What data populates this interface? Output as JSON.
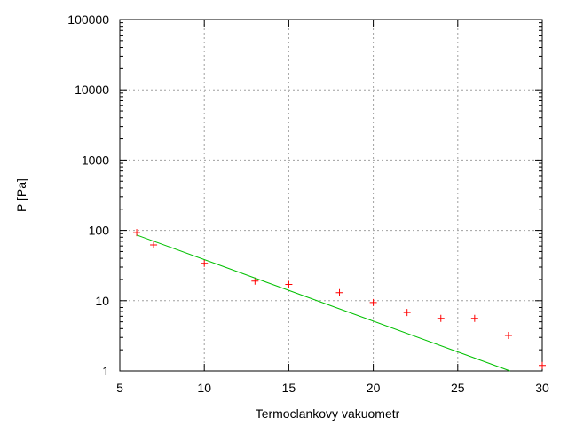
{
  "chart_data": {
    "type": "scatter",
    "title": "",
    "xlabel": "Termoclankovy vakuometr",
    "ylabel": "P [Pa]",
    "xlim": [
      5,
      30
    ],
    "ylim": [
      1,
      100000
    ],
    "yscale": "log",
    "grid": true,
    "x_ticks": [
      5,
      10,
      15,
      20,
      25,
      30
    ],
    "x_tick_labels": [
      "5",
      "10",
      "15",
      "20",
      "25",
      "30"
    ],
    "y_ticks": [
      1,
      10,
      100,
      1000,
      10000,
      100000
    ],
    "y_tick_labels": [
      "1",
      "10",
      "100",
      "1000",
      "10000",
      "100000"
    ],
    "series": [
      {
        "type": "scatter",
        "marker": "+",
        "color": "#ff0000",
        "x": [
          6,
          7,
          10,
          13,
          15,
          18,
          20,
          22,
          24,
          26,
          28,
          30
        ],
        "y": [
          93,
          62,
          34,
          19,
          17,
          13,
          9.4,
          6.8,
          5.6,
          5.6,
          3.2,
          1.2
        ]
      },
      {
        "type": "line",
        "color": "#00c000",
        "x": [
          6,
          28.1
        ],
        "y": [
          86,
          1
        ]
      }
    ]
  }
}
